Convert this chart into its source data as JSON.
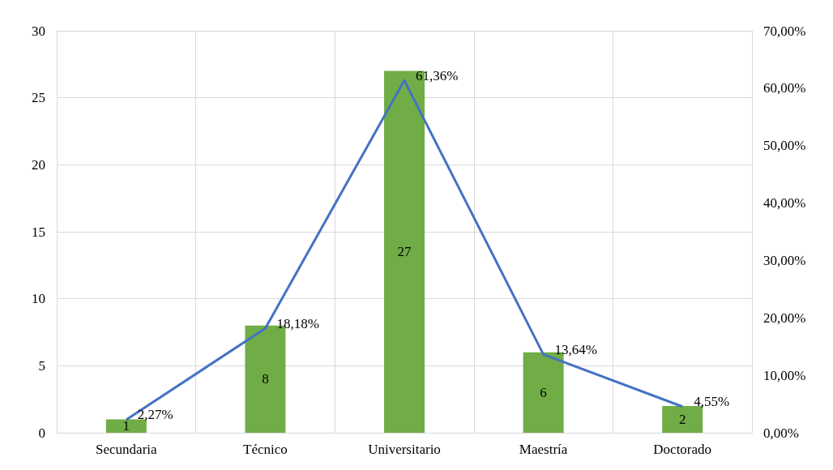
{
  "chart_data": {
    "type": "bar",
    "categories": [
      "Secundaria",
      "Técnico",
      "Universitario",
      "Maestría",
      "Doctorado"
    ],
    "series": [
      {
        "color": "#70ad47",
        "values": [
          1,
          8,
          27,
          6,
          2
        ],
        "value_labels": [
          "1",
          "8",
          "27",
          "6",
          "2"
        ]
      },
      {
        "type": "line",
        "axis": "y2",
        "color": "#4472c4",
        "values": [
          2.27,
          18.18,
          61.36,
          13.64,
          4.55
        ],
        "value_labels": [
          "2,27%",
          "18,18%",
          "61,36%",
          "13,64%",
          "4,55%"
        ]
      }
    ],
    "ylim": [
      0,
      30
    ],
    "yticks": [
      0,
      5,
      10,
      15,
      20,
      25,
      30
    ],
    "y2lim": [
      0,
      70
    ],
    "y2ticks": [
      {
        "value": 0,
        "label": "0,00%"
      },
      {
        "value": 10,
        "label": "10,00%"
      },
      {
        "value": 20,
        "label": "20,00%"
      },
      {
        "value": 30,
        "label": "30,00%"
      },
      {
        "value": 40,
        "label": "40,00%"
      },
      {
        "value": 50,
        "label": "50,00%"
      },
      {
        "value": 60,
        "label": "60,00%"
      },
      {
        "value": 70,
        "label": "70,00%"
      }
    ],
    "grid": true,
    "marker": "none"
  }
}
